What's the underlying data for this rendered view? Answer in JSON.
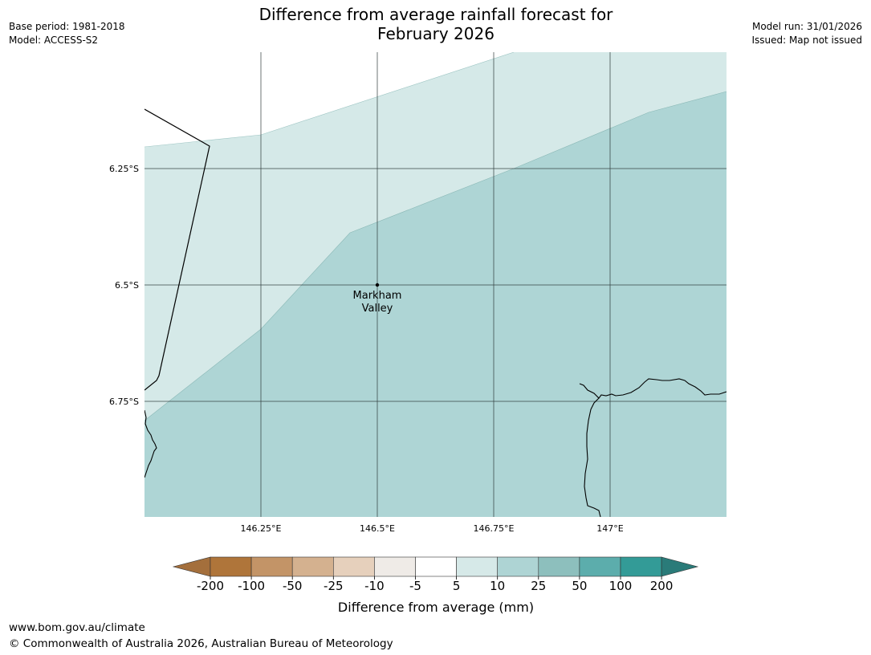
{
  "header": {
    "title_line1": "Difference from average rainfall forecast for",
    "title_line2": "February 2026",
    "base_period": "Base period: 1981-2018",
    "model": "Model: ACCESS-S2",
    "model_run": "Model run: 31/01/2026",
    "issued": "Issued: Map not issued"
  },
  "map": {
    "lon_ticks": [
      {
        "value": 146.25,
        "label": "146.25°E"
      },
      {
        "value": 146.5,
        "label": "146.5°E"
      },
      {
        "value": 146.75,
        "label": "146.75°E"
      },
      {
        "value": 147.0,
        "label": "147°E"
      }
    ],
    "lat_ticks": [
      {
        "value": -6.25,
        "label": "6.25°S"
      },
      {
        "value": -6.5,
        "label": "6.5°S"
      },
      {
        "value": -6.75,
        "label": "6.75°S"
      }
    ],
    "place": {
      "name_line1": "Markham",
      "name_line2": "Valley",
      "lon": 146.5,
      "lat": -6.5
    },
    "fill_colors": {
      "band_5_10": "#d5e9e8",
      "band_10_25": "#aed5d5"
    }
  },
  "legend": {
    "title": "Difference from average (mm)",
    "labels": [
      "-200",
      "-100",
      "-50",
      "-25",
      "-10",
      "-5",
      "5",
      "10",
      "25",
      "50",
      "100",
      "200"
    ],
    "colors": [
      "#a46f3c",
      "#af753a",
      "#c39467",
      "#d4b18f",
      "#e6d0bc",
      "#efebe7",
      "#ffffff",
      "#d6e9e8",
      "#aed4d4",
      "#8dbfbd",
      "#5cadac",
      "#339b97",
      "#2a7b79"
    ]
  },
  "footer": {
    "url": "www.bom.gov.au/climate",
    "copyright": "© Commonwealth of Australia 2026, Australian Bureau of Meteorology"
  }
}
